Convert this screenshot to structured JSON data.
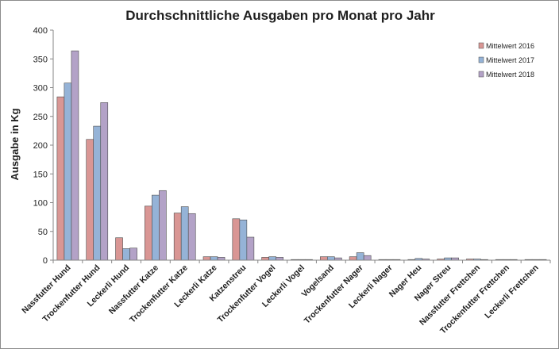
{
  "chart_data": {
    "type": "bar",
    "title": "Durchschnittliche Ausgaben pro Monat pro Jahr",
    "xlabel": "",
    "ylabel": "Ausgabe in Kg",
    "ylim": [
      0,
      400
    ],
    "yticks": [
      0,
      50,
      100,
      150,
      200,
      250,
      300,
      350,
      400
    ],
    "grid": false,
    "legend_position": "top-right",
    "categories": [
      "Nassfutter Hund",
      "Trockenfutter Hund",
      "Leckerli Hund",
      "Nassfutter Katze",
      "Trockenfutter Katze",
      "Leckerli Katze",
      "Katzenstreu",
      "Trockenfutter Vogel",
      "Leckerli Vogel",
      "Vogelsand",
      "Trockenfutter Nager",
      "Leckerli Nager",
      "Nager Heu",
      "Nager Streu",
      "Nassfutter Frettchen",
      "Trockenfutter Frettchen",
      "Leckerli Frettchen"
    ],
    "series": [
      {
        "name": "Mittelwert 2016",
        "color": "#d99694",
        "values": [
          284,
          210,
          39,
          94,
          82,
          6,
          72,
          5,
          0.5,
          6,
          6,
          0.5,
          1,
          2,
          2,
          0.3,
          0.3
        ]
      },
      {
        "name": "Mittelwert 2017",
        "color": "#95b3d7",
        "values": [
          308,
          233,
          20,
          113,
          93,
          6,
          70,
          6,
          0.5,
          6,
          13,
          1,
          3,
          4,
          2,
          0.3,
          0.3
        ]
      },
      {
        "name": "Mittelwert 2018",
        "color": "#b3a2c7",
        "values": [
          364,
          274,
          21,
          121,
          81,
          5,
          40,
          5,
          0.5,
          4,
          8,
          1,
          2,
          4,
          1,
          0.3,
          0.3
        ]
      }
    ]
  }
}
